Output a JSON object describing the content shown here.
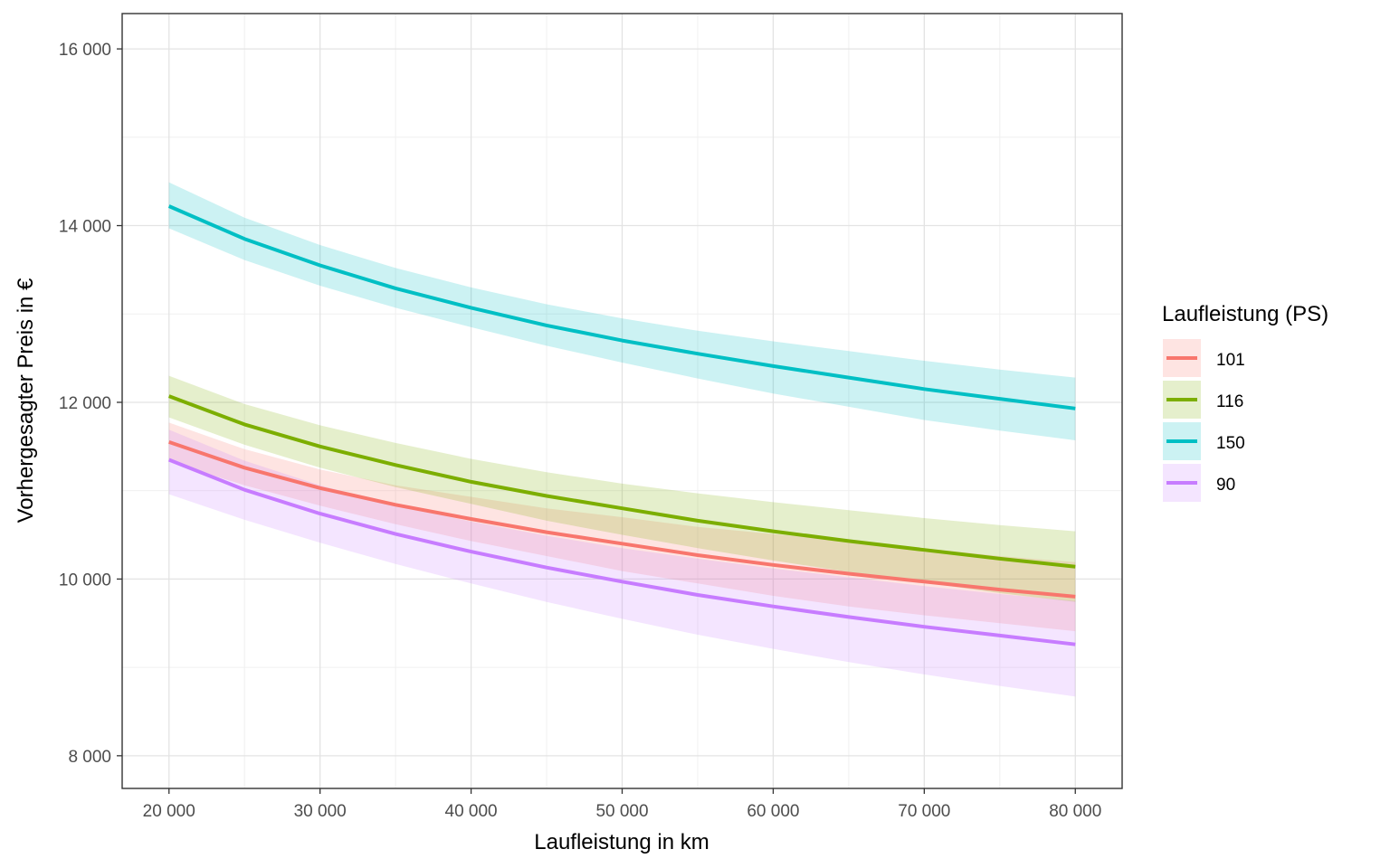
{
  "chart_data": {
    "type": "line",
    "xlabel": "Laufleistung in km",
    "ylabel": "Vorhergesagter Preis in €",
    "xlim": [
      16900,
      83100
    ],
    "ylim": [
      7630,
      16400
    ],
    "x_ticks": [
      20000,
      30000,
      40000,
      50000,
      60000,
      70000,
      80000
    ],
    "x_tick_labels": [
      "20 000",
      "30 000",
      "40 000",
      "50 000",
      "60 000",
      "70 000",
      "80 000"
    ],
    "y_ticks": [
      8000,
      10000,
      12000,
      14000,
      16000
    ],
    "y_tick_labels": [
      "8 000",
      "10 000",
      "12 000",
      "14 000",
      "16 000"
    ],
    "grid": true,
    "legend": {
      "title": "Laufleistung (PS)",
      "position": "right"
    },
    "x": [
      20000,
      25000,
      30000,
      35000,
      40000,
      45000,
      50000,
      55000,
      60000,
      65000,
      70000,
      75000,
      80000
    ],
    "series": [
      {
        "name": "101",
        "color": "#F8766D",
        "values": [
          11550,
          11260,
          11030,
          10840,
          10680,
          10530,
          10400,
          10270,
          10160,
          10060,
          9970,
          9880,
          9800
        ],
        "lower": [
          11330,
          11060,
          10830,
          10620,
          10430,
          10260,
          10090,
          9950,
          9810,
          9690,
          9590,
          9500,
          9410
        ],
        "upper": [
          11770,
          11470,
          11240,
          11060,
          10930,
          10800,
          10700,
          10590,
          10510,
          10430,
          10350,
          10260,
          10190
        ]
      },
      {
        "name": "116",
        "color": "#7CAE00",
        "values": [
          12070,
          11750,
          11500,
          11290,
          11100,
          10940,
          10800,
          10660,
          10540,
          10430,
          10330,
          10230,
          10140
        ],
        "lower": [
          11830,
          11520,
          11260,
          11040,
          10850,
          10660,
          10500,
          10350,
          10210,
          10080,
          9960,
          9840,
          9740
        ],
        "upper": [
          12300,
          11980,
          11740,
          11540,
          11360,
          11210,
          11080,
          10970,
          10870,
          10780,
          10690,
          10610,
          10540
        ]
      },
      {
        "name": "150",
        "color": "#00BFC4",
        "values": [
          14220,
          13850,
          13550,
          13290,
          13070,
          12870,
          12700,
          12550,
          12410,
          12280,
          12150,
          12040,
          11930
        ],
        "lower": [
          13970,
          13610,
          13320,
          13070,
          12850,
          12640,
          12450,
          12270,
          12100,
          11950,
          11800,
          11680,
          11570
        ],
        "upper": [
          14490,
          14090,
          13780,
          13520,
          13300,
          13110,
          12950,
          12810,
          12690,
          12580,
          12470,
          12370,
          12280
        ]
      },
      {
        "name": "90",
        "color": "#C77CFF",
        "values": [
          11350,
          11010,
          10740,
          10510,
          10310,
          10130,
          9970,
          9820,
          9690,
          9570,
          9460,
          9360,
          9260
        ],
        "lower": [
          10960,
          10670,
          10410,
          10170,
          9950,
          9740,
          9550,
          9370,
          9210,
          9060,
          8920,
          8790,
          8670
        ],
        "upper": [
          11690,
          11340,
          11060,
          10840,
          10650,
          10490,
          10350,
          10230,
          10120,
          10020,
          9920,
          9830,
          9750
        ]
      }
    ]
  }
}
